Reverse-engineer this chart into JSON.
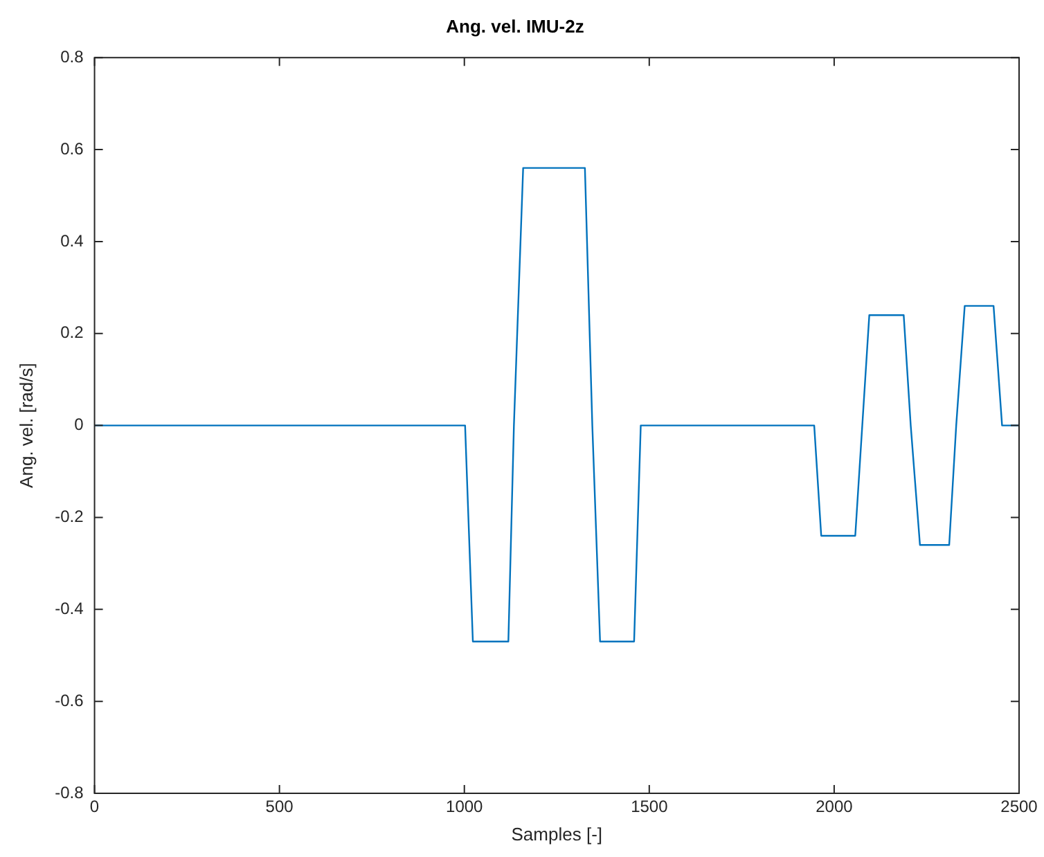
{
  "chart_data": {
    "type": "line",
    "title": "Ang. vel. IMU-2z",
    "xlabel": "Samples [-]",
    "ylabel": "Ang. vel. [rad/s]",
    "x": [
      0,
      1002,
      1023,
      1119,
      1134,
      1159,
      1326,
      1346,
      1367,
      1459,
      1477,
      1946,
      1965,
      2057,
      2076,
      2095,
      2188,
      2207,
      2232,
      2311,
      2330,
      2353,
      2431,
      2454,
      2500
    ],
    "series": [
      {
        "color": "#0072bd",
        "values": [
          0,
          0,
          -0.47,
          -0.47,
          0,
          0.56,
          0.56,
          0,
          -0.47,
          -0.47,
          0,
          0,
          -0.24,
          -0.24,
          0,
          0.24,
          0.24,
          0,
          -0.26,
          -0.26,
          0,
          0.26,
          0.26,
          0,
          0
        ]
      }
    ],
    "xlim": [
      0,
      2500
    ],
    "xticks": [
      0,
      500,
      1000,
      1500,
      2000,
      2500
    ],
    "ylim": [
      -0.8,
      0.8
    ],
    "yticks": [
      -0.8,
      -0.6,
      -0.4,
      -0.2,
      0,
      0.2,
      0.4,
      0.6,
      0.8
    ],
    "grid": false,
    "legend": false,
    "marker": "none",
    "line_style": "solid"
  }
}
